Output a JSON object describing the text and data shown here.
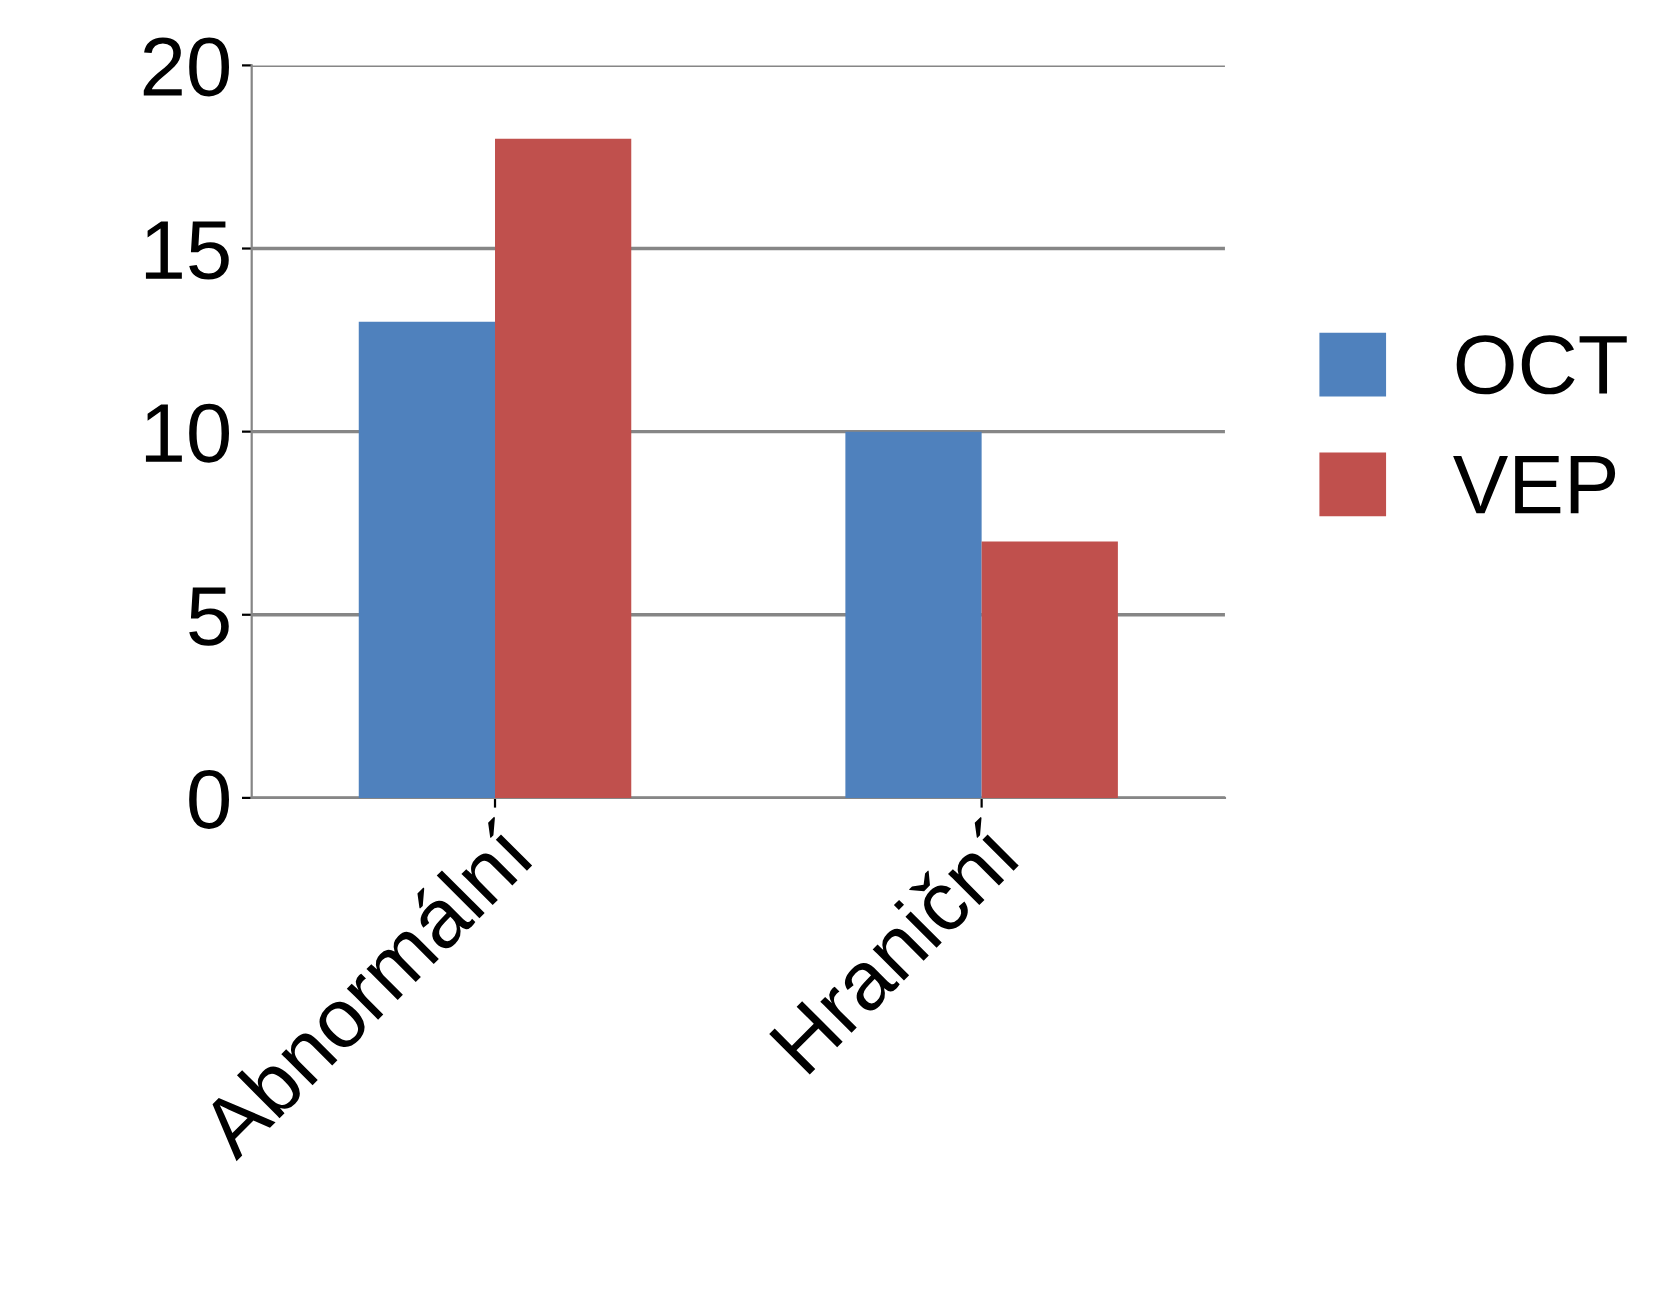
{
  "chart_data": {
    "type": "bar",
    "categories": [
      "Abnormální",
      "Hraniční"
    ],
    "series": [
      {
        "name": "OCT",
        "color": "#4f81bd",
        "values": [
          13,
          10
        ]
      },
      {
        "name": "VEP",
        "color": "#c0504d",
        "values": [
          18,
          7
        ]
      }
    ],
    "ylim": [
      0,
      20
    ],
    "yticks": [
      0,
      5,
      10,
      15,
      20
    ],
    "grid": "y",
    "legend": "right"
  }
}
